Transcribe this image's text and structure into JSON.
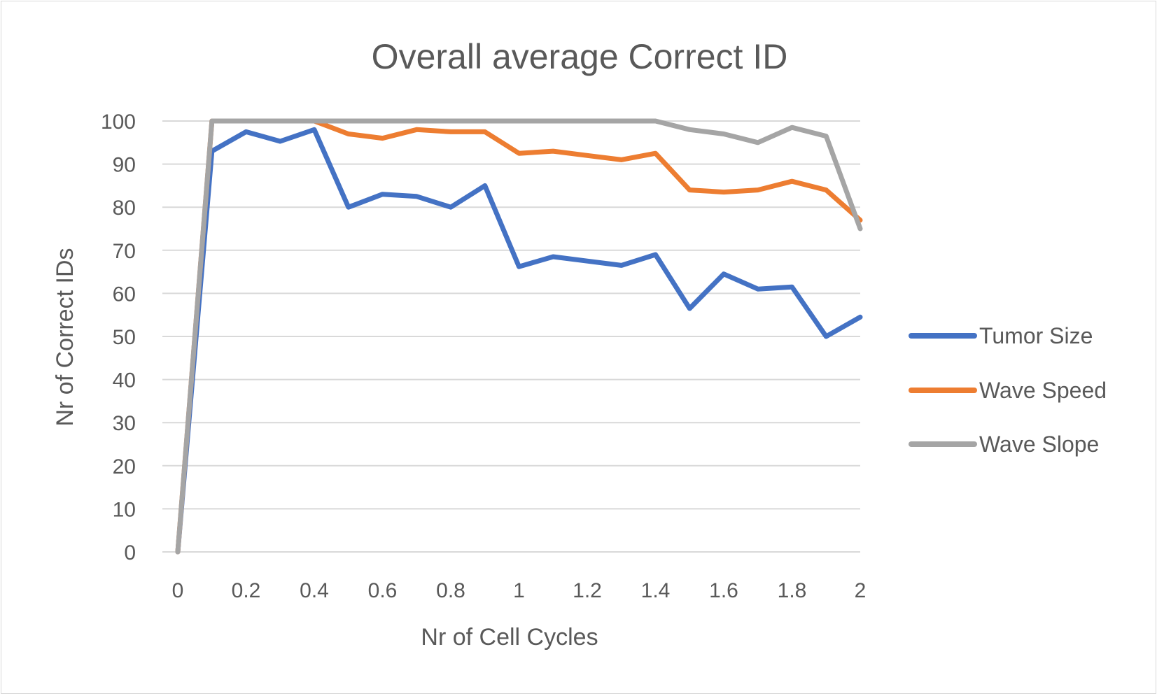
{
  "chart_data": {
    "type": "line",
    "title": "Overall average Correct ID",
    "xlabel": "Nr of Cell Cycles",
    "ylabel": "Nr of Correct IDs",
    "x": [
      0,
      0.1,
      0.2,
      0.3,
      0.4,
      0.5,
      0.6,
      0.7,
      0.8,
      0.9,
      1,
      1.1,
      1.2,
      1.3,
      1.4,
      1.5,
      1.6,
      1.7,
      1.8,
      1.9,
      2
    ],
    "xticks": [
      0,
      0.2,
      0.4,
      0.6,
      0.8,
      1,
      1.2,
      1.4,
      1.6,
      1.8,
      2
    ],
    "xtick_labels": [
      "0",
      "0.2",
      "0.4",
      "0.6",
      "0.8",
      "1",
      "1.2",
      "1.4",
      "1.6",
      "1.8",
      "2"
    ],
    "xlim": [
      0,
      2
    ],
    "yticks": [
      0,
      10,
      20,
      30,
      40,
      50,
      60,
      70,
      80,
      90,
      100
    ],
    "ytick_labels": [
      "0",
      "10",
      "20",
      "30",
      "40",
      "50",
      "60",
      "70",
      "80",
      "90",
      "100"
    ],
    "ylim": [
      0,
      100
    ],
    "grid": "horizontal",
    "legend_position": "right",
    "series": [
      {
        "name": "Tumor Size",
        "color": "#4472c4",
        "values": [
          0,
          93,
          97.5,
          95.3,
          98,
          80,
          83,
          82.5,
          80,
          85,
          66.2,
          68.5,
          67.5,
          66.5,
          69,
          56.5,
          64.5,
          61,
          61.5,
          50,
          54.5
        ]
      },
      {
        "name": "Wave Speed",
        "color": "#ed7d31",
        "values": [
          0,
          100,
          100,
          100,
          100,
          97,
          96,
          98,
          97.5,
          97.5,
          92.5,
          93,
          92,
          91,
          92.5,
          84,
          83.5,
          84,
          86,
          84,
          77
        ]
      },
      {
        "name": "Wave Slope",
        "color": "#a5a5a5",
        "values": [
          0,
          100,
          100,
          100,
          100,
          100,
          100,
          100,
          100,
          100,
          100,
          100,
          100,
          100,
          100,
          98,
          97,
          95,
          98.5,
          96.5,
          75
        ]
      }
    ]
  }
}
